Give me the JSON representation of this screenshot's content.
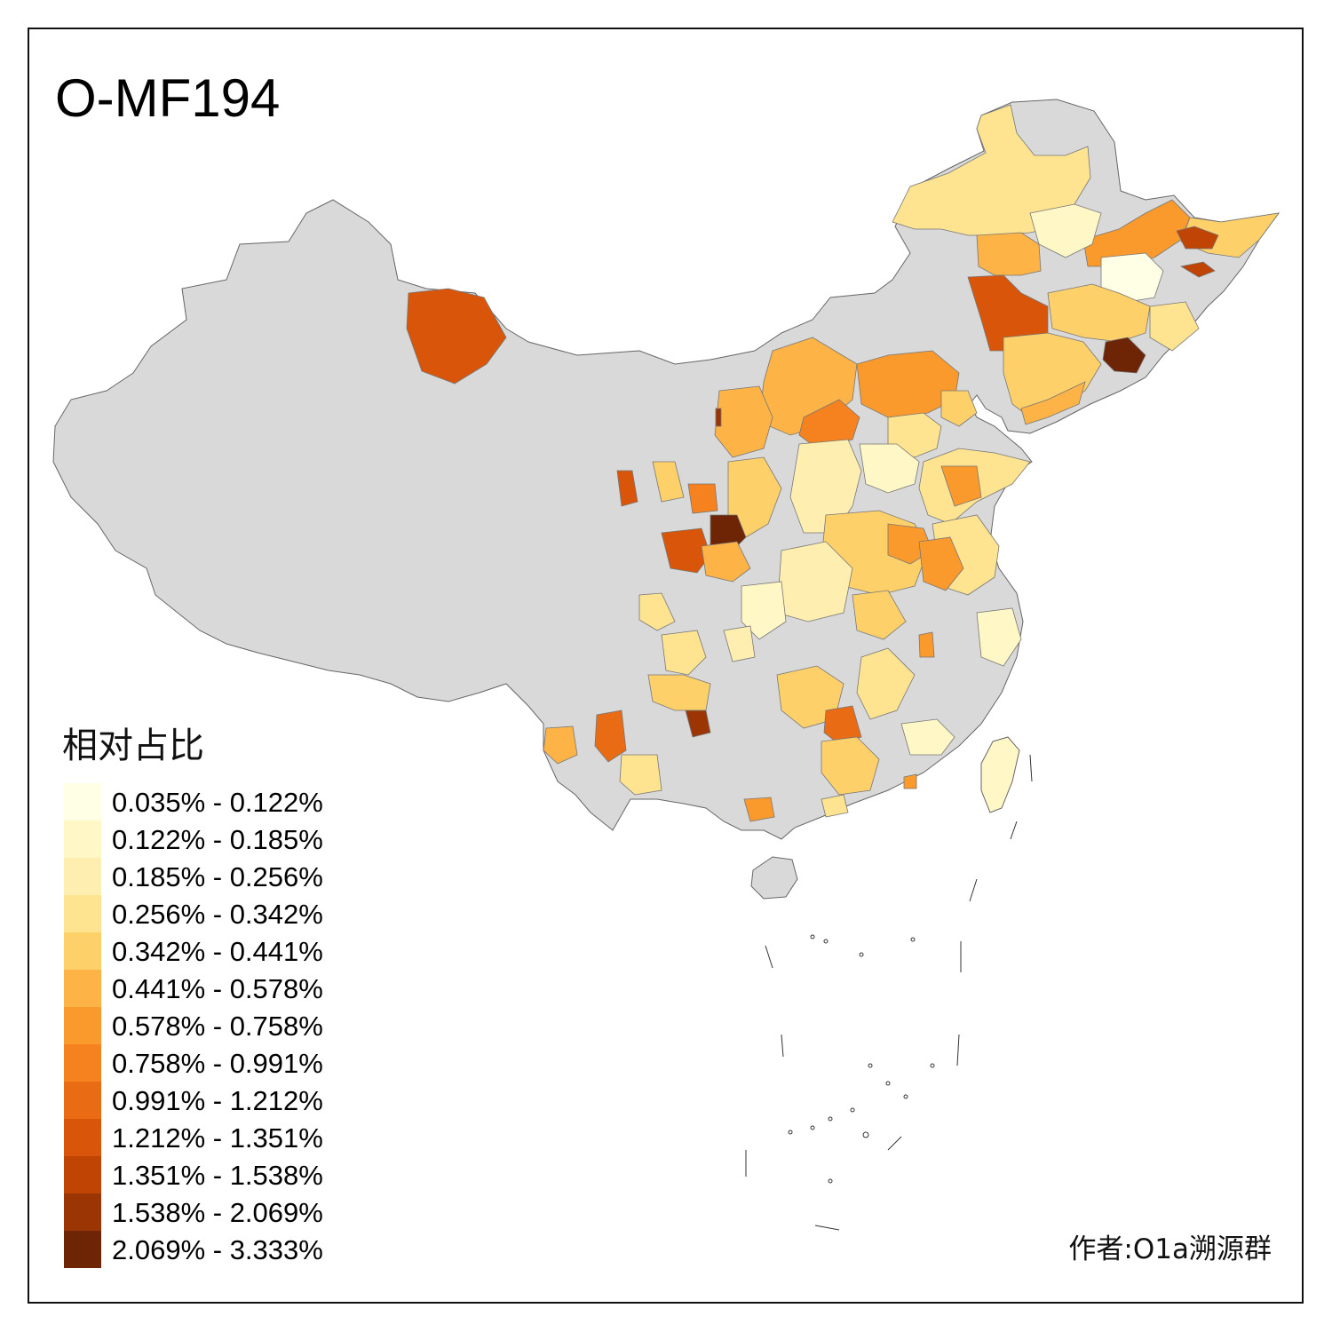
{
  "title": "O-MF194",
  "legend": {
    "title": "相对占比",
    "items": [
      {
        "label": "0.035% - 0.122%",
        "color": "#ffffe5"
      },
      {
        "label": "0.122% - 0.185%",
        "color": "#fff7c6"
      },
      {
        "label": "0.185% - 0.256%",
        "color": "#feefb0"
      },
      {
        "label": "0.256% - 0.342%",
        "color": "#fee391"
      },
      {
        "label": "0.342% - 0.441%",
        "color": "#fed06a"
      },
      {
        "label": "0.441% - 0.578%",
        "color": "#fdb346"
      },
      {
        "label": "0.578% - 0.758%",
        "color": "#fb9a2c"
      },
      {
        "label": "0.758% - 0.991%",
        "color": "#f5821f"
      },
      {
        "label": "0.991% - 1.212%",
        "color": "#e96b13"
      },
      {
        "label": "1.212% - 1.351%",
        "color": "#d85509"
      },
      {
        "label": "1.351% - 1.538%",
        "color": "#c04403"
      },
      {
        "label": "1.538% - 2.069%",
        "color": "#9c3504"
      },
      {
        "label": "2.069% - 3.333%",
        "color": "#6e2506"
      }
    ]
  },
  "no_data_color": "#d9d9d9",
  "author": "作者:O1a溯源群"
}
